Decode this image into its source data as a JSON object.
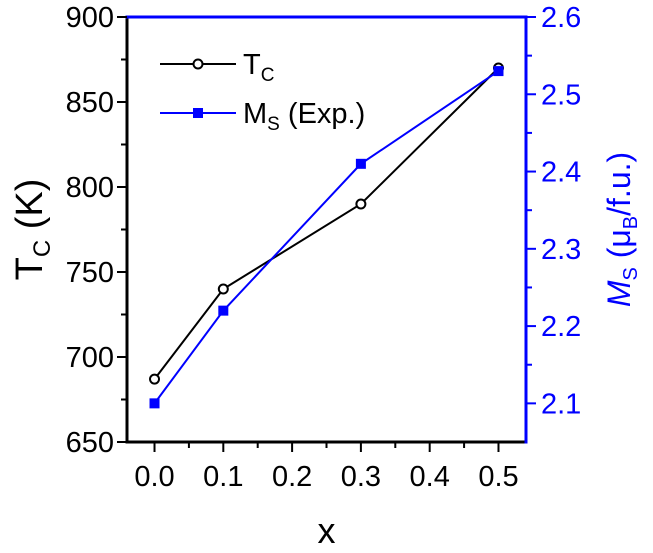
{
  "chart_data": {
    "type": "line",
    "x": [
      0.0,
      0.1,
      0.3,
      0.5
    ],
    "xlabel": "x",
    "xlim": [
      -0.04,
      0.54
    ],
    "xticks": [
      "0.0",
      "0.1",
      "0.2",
      "0.3",
      "0.4",
      "0.5"
    ],
    "y_left": {
      "label_main": "T",
      "label_sub": "C",
      "label_unit": " (K)",
      "lim": [
        650,
        900
      ],
      "ticks": [
        "650",
        "700",
        "750",
        "800",
        "850",
        "900"
      ]
    },
    "y_right": {
      "label_main": "M",
      "label_sub": "S",
      "label_unit_open": " (μ",
      "label_unit_sub": "B",
      "label_unit_close": "/f.u.)",
      "lim": [
        2.05,
        2.6
      ],
      "ticks": [
        "2.1",
        "2.2",
        "2.3",
        "2.4",
        "2.5",
        "2.6"
      ],
      "color": "#0000ff"
    },
    "series": [
      {
        "legend_main": "T",
        "legend_sub": "C",
        "legend_suffix": "",
        "axis": "left",
        "values": [
          687,
          740,
          790,
          870
        ],
        "color": "#000000",
        "marker": "open-circle"
      },
      {
        "legend_main": "M",
        "legend_sub": "S",
        "legend_suffix": " (Exp.)",
        "axis": "right",
        "values": [
          2.1,
          2.22,
          2.41,
          2.53
        ],
        "color": "#0000ff",
        "marker": "filled-square"
      }
    ],
    "legend_position": "top-left",
    "grid": false
  }
}
